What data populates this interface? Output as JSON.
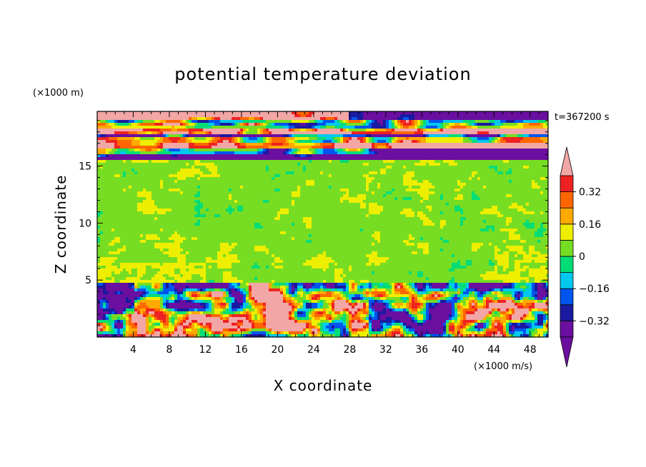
{
  "chart_data": {
    "type": "heatmap",
    "title": "potential temperature deviation",
    "xlabel": "X coordinate",
    "ylabel": "Z coordinate",
    "x_units": "(×1000 m/s)",
    "y_units": "(×1000 m)",
    "time_label": "t=367200 s",
    "xlim": [
      0,
      50
    ],
    "ylim": [
      0,
      19.8
    ],
    "xticks": [
      4,
      8,
      12,
      16,
      20,
      24,
      28,
      32,
      36,
      40,
      44,
      48
    ],
    "yticks": [
      5,
      10,
      15
    ],
    "colorbar": {
      "levels": [
        -0.4,
        -0.32,
        -0.24,
        -0.16,
        -0.08,
        0,
        0.08,
        0.16,
        0.24,
        0.32,
        0.4
      ],
      "colors": [
        "#6a0fa0",
        "#1a1aa0",
        "#0055ee",
        "#00c8ee",
        "#00dd77",
        "#77dd22",
        "#eeee00",
        "#ffaa00",
        "#ff6600",
        "#ee2222",
        "#f2a6a6"
      ],
      "labels": [
        "0.32",
        "0.16",
        "0",
        "-0.16",
        "-0.32"
      ],
      "label_values": [
        0.32,
        0.16,
        0,
        -0.16,
        -0.32
      ],
      "extend": "both"
    },
    "layers": [
      {
        "z_range": [
          15.6,
          19.8
        ],
        "description_value": "stratified bands alternating -0.4 and +0.4"
      },
      {
        "z_range": [
          4.8,
          15.6
        ],
        "description_value": "mostly 0 to 0.08"
      },
      {
        "z_range": [
          0,
          4.8
        ],
        "description_value": "turbulent, full range"
      }
    ]
  }
}
